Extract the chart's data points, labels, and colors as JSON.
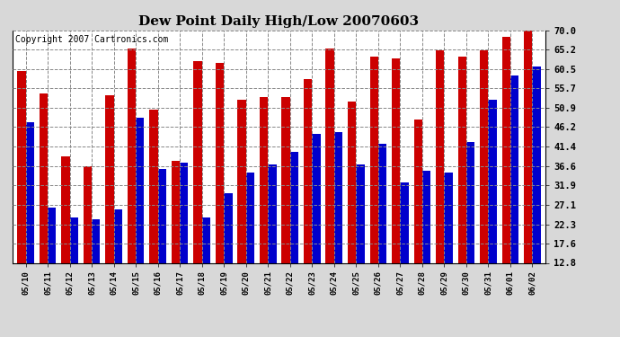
{
  "title": "Dew Point Daily High/Low 20070603",
  "copyright": "Copyright 2007 Cartronics.com",
  "categories": [
    "05/10",
    "05/11",
    "05/12",
    "05/13",
    "05/14",
    "05/15",
    "05/16",
    "05/17",
    "05/18",
    "05/19",
    "05/20",
    "05/21",
    "05/22",
    "05/23",
    "05/24",
    "05/25",
    "05/26",
    "05/27",
    "05/28",
    "05/29",
    "05/30",
    "05/31",
    "06/01",
    "06/02"
  ],
  "high_values": [
    60.0,
    54.5,
    39.0,
    36.5,
    54.0,
    65.5,
    50.5,
    38.0,
    62.5,
    62.0,
    53.0,
    53.5,
    53.5,
    58.0,
    65.5,
    52.5,
    63.5,
    63.0,
    48.0,
    65.0,
    63.5,
    65.0,
    68.5,
    71.0
  ],
  "low_values": [
    47.5,
    26.5,
    24.0,
    23.5,
    26.0,
    48.5,
    36.0,
    37.5,
    24.0,
    30.0,
    35.0,
    37.0,
    40.0,
    44.5,
    45.0,
    37.0,
    42.0,
    32.5,
    35.5,
    35.0,
    42.5,
    53.0,
    59.0,
    61.0
  ],
  "high_color": "#cc0000",
  "low_color": "#0000cc",
  "background_color": "#d8d8d8",
  "plot_bg_color": "#ffffff",
  "grid_color": "#888888",
  "yticks": [
    12.8,
    17.6,
    22.3,
    27.1,
    31.9,
    36.6,
    41.4,
    46.2,
    50.9,
    55.7,
    60.5,
    65.2,
    70.0
  ],
  "ymin": 12.8,
  "ymax": 70.0,
  "title_fontsize": 11,
  "copyright_fontsize": 7,
  "bar_width": 0.38
}
